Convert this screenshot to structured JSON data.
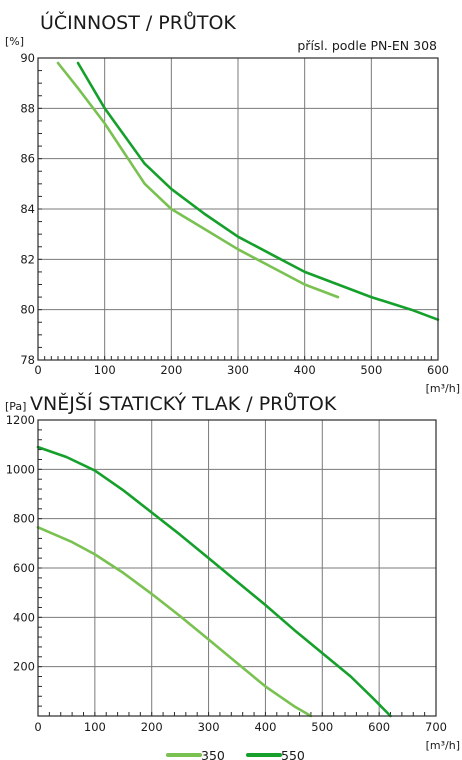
{
  "colors": {
    "series_350": "#79c150",
    "series_550": "#15a02b",
    "grid": "#7a7a7a",
    "axis": "#2b2b2b"
  },
  "chart_data": [
    {
      "type": "line",
      "title": "ÚČINNOST / PRŮTOK",
      "subtitle": "přísl. podle PN-EN 308",
      "ylabel": "[%]",
      "xlabel": "[m³/h]",
      "xlim": [
        0,
        600
      ],
      "ylim": [
        78,
        90
      ],
      "x_ticks": [
        0,
        100,
        200,
        300,
        400,
        500,
        600
      ],
      "y_ticks": [
        78,
        80,
        82,
        84,
        86,
        88,
        90
      ],
      "grid": true,
      "series": [
        {
          "name": "350",
          "points": [
            [
              30,
              89.8
            ],
            [
              60,
              88.8
            ],
            [
              100,
              87.4
            ],
            [
              130,
              86.2
            ],
            [
              160,
              85.0
            ],
            [
              200,
              84.0
            ],
            [
              250,
              83.2
            ],
            [
              300,
              82.4
            ],
            [
              350,
              81.7
            ],
            [
              400,
              81.0
            ],
            [
              450,
              80.5
            ]
          ]
        },
        {
          "name": "550",
          "points": [
            [
              60,
              89.8
            ],
            [
              100,
              88.0
            ],
            [
              130,
              86.9
            ],
            [
              160,
              85.8
            ],
            [
              200,
              84.8
            ],
            [
              250,
              83.8
            ],
            [
              300,
              82.9
            ],
            [
              350,
              82.2
            ],
            [
              400,
              81.5
            ],
            [
              450,
              81.0
            ],
            [
              500,
              80.5
            ],
            [
              560,
              80.0
            ],
            [
              600,
              79.6
            ]
          ]
        }
      ]
    },
    {
      "type": "line",
      "title": "VNĚJŠÍ STATICKÝ TLAK / PRŮTOK",
      "ylabel": "[Pa]",
      "xlabel": "[m³/h]",
      "xlim": [
        0,
        700
      ],
      "ylim": [
        0,
        1200
      ],
      "x_ticks": [
        0,
        100,
        200,
        300,
        400,
        500,
        600,
        700
      ],
      "y_ticks": [
        200,
        400,
        600,
        800,
        1000,
        1200
      ],
      "grid": true,
      "series": [
        {
          "name": "350",
          "points": [
            [
              0,
              765
            ],
            [
              60,
              705
            ],
            [
              100,
              655
            ],
            [
              150,
              580
            ],
            [
              200,
              495
            ],
            [
              250,
              405
            ],
            [
              300,
              310
            ],
            [
              350,
              215
            ],
            [
              400,
              120
            ],
            [
              450,
              40
            ],
            [
              480,
              0
            ]
          ]
        },
        {
          "name": "550",
          "points": [
            [
              0,
              1090
            ],
            [
              50,
              1050
            ],
            [
              100,
              995
            ],
            [
              150,
              915
            ],
            [
              200,
              825
            ],
            [
              250,
              735
            ],
            [
              300,
              640
            ],
            [
              350,
              545
            ],
            [
              400,
              450
            ],
            [
              450,
              350
            ],
            [
              500,
              255
            ],
            [
              550,
              160
            ],
            [
              590,
              70
            ],
            [
              620,
              0
            ]
          ]
        }
      ]
    }
  ],
  "legend": {
    "items": [
      {
        "label": "350",
        "color": "#79c150"
      },
      {
        "label": "550",
        "color": "#15a02b"
      }
    ]
  }
}
